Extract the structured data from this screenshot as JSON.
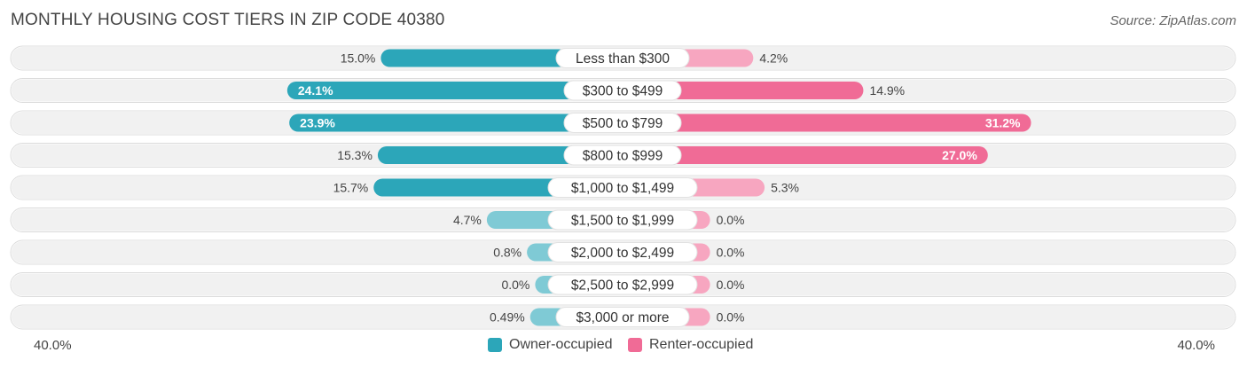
{
  "title": "MONTHLY HOUSING COST TIERS IN ZIP CODE 40380",
  "source": "Source: ZipAtlas.com",
  "colors": {
    "owner": "#2ca6b9",
    "owner_light": "#7fcad5",
    "renter": "#f06b96",
    "renter_light": "#f7a6c0",
    "row_bg": "#f1f1f1"
  },
  "chart_data": {
    "type": "bar",
    "orientation": "horizontal-diverging",
    "categories": [
      "Less than $300",
      "$300 to $499",
      "$500 to $799",
      "$800 to $999",
      "$1,000 to $1,499",
      "$1,500 to $1,999",
      "$2,000 to $2,499",
      "$2,500 to $2,999",
      "$3,000 or more"
    ],
    "series": [
      {
        "name": "Owner-occupied",
        "values": [
          15.0,
          24.1,
          23.9,
          15.3,
          15.7,
          4.7,
          0.8,
          0.0,
          0.49
        ],
        "labels": [
          "15.0%",
          "24.1%",
          "23.9%",
          "15.3%",
          "15.7%",
          "4.7%",
          "0.8%",
          "0.0%",
          "0.49%"
        ]
      },
      {
        "name": "Renter-occupied",
        "values": [
          4.2,
          14.9,
          31.2,
          27.0,
          5.3,
          0.0,
          0.0,
          0.0,
          0.0
        ],
        "labels": [
          "4.2%",
          "14.9%",
          "31.2%",
          "27.0%",
          "5.3%",
          "0.0%",
          "0.0%",
          "0.0%",
          "0.0%"
        ]
      }
    ],
    "xlim": [
      -40,
      40
    ],
    "axis_min_label": "40.0%",
    "axis_max_label": "40.0%",
    "legend_position": "bottom-center"
  }
}
